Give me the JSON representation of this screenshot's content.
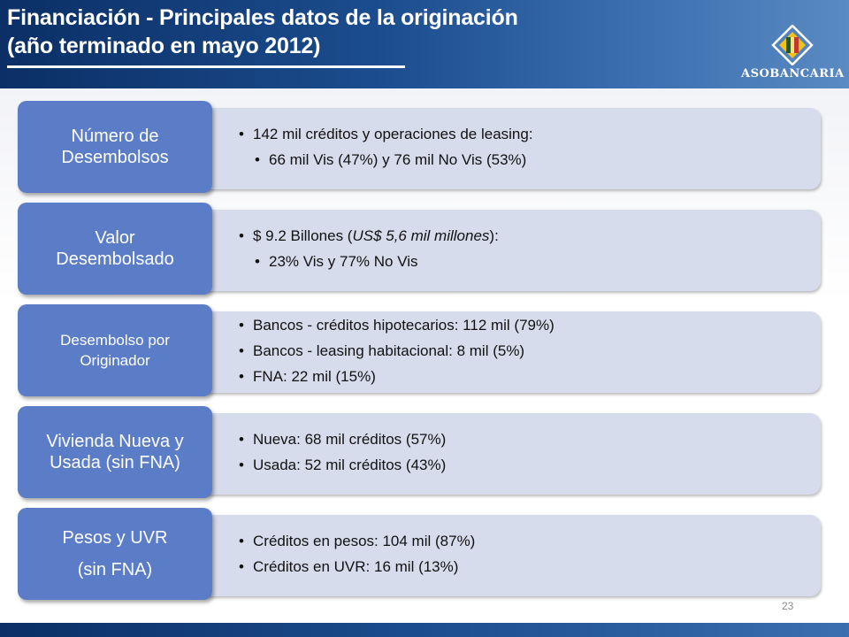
{
  "header": {
    "title_line1": "Financiación - Principales datos de la originación",
    "title_line2": "(año terminado en mayo 2012)",
    "logo_text": "ASOBANCARIA"
  },
  "rows": [
    {
      "label_line1": "Número de",
      "label_line2": "Desembolsos",
      "bullet1": "142 mil créditos y operaciones de leasing:",
      "bullet2": "66 mil Vis (47%) y 76 mil No Vis (53%)"
    },
    {
      "label_line1": "Valor",
      "label_line2": "Desembolsado",
      "bullet1_prefix": "$ 9.2 Billones (",
      "bullet1_italic": "US$ 5,6 mil millones",
      "bullet1_suffix": "):",
      "bullet2": "23% Vis y 77% No Vis"
    },
    {
      "label_line1": "Desembolso por",
      "label_line2": "Originador",
      "bullet1": "Bancos - créditos hipotecarios: 112 mil (79%)",
      "bullet2": "Bancos - leasing habitacional: 8 mil (5%)",
      "bullet3": "FNA: 22 mil (15%)"
    },
    {
      "label_line1": "Vivienda Nueva y",
      "label_line2": "Usada (sin FNA)",
      "bullet1": "Nueva: 68 mil créditos (57%)",
      "bullet2": "Usada: 52 mil créditos (43%)"
    },
    {
      "label_line1": "Pesos y UVR",
      "label_line2": "(sin FNA)",
      "bullet1": "Créditos en pesos: 104 mil (87%)",
      "bullet2": "Créditos en UVR: 16 mil (13%)"
    }
  ],
  "page_number": "23",
  "colors": {
    "header_blue": "#1c4d8e",
    "label_blue": "#5b7dc7",
    "panel_lavender": "#d7dced"
  }
}
